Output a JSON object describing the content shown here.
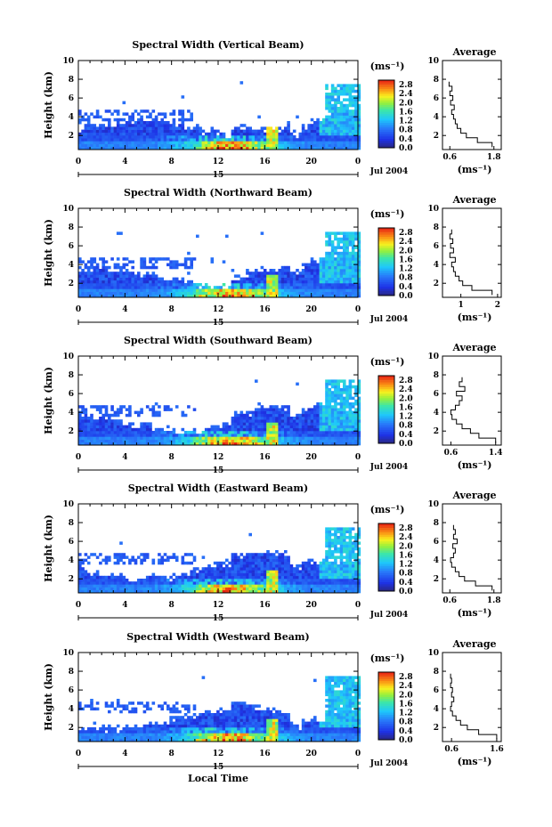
{
  "figure": {
    "xlabel_bottom": "Local Time",
    "date_label": "Jul 2004",
    "day_label": "15",
    "colorbar_unit": "(ms⁻¹)",
    "average_title": "Average",
    "average_xlabel": "(ms⁻¹)",
    "ylabel": "Height (km)"
  },
  "chart_data": [
    {
      "type": "heatmap",
      "title": "Spectral Width (Vertical Beam)",
      "x_ticks": [
        "0",
        "4",
        "8",
        "12",
        "16",
        "20",
        "0"
      ],
      "y_ticks": [
        "2",
        "4",
        "6",
        "8",
        "10"
      ],
      "xlim": [
        0,
        24
      ],
      "ylim": [
        0.5,
        10
      ],
      "colorbar_ticks": [
        "2.8",
        "2.4",
        "2.0",
        "1.6",
        "1.2",
        "0.8",
        "0.4",
        "0.0"
      ],
      "colorbar_range": [
        0,
        3.0
      ],
      "average": {
        "title": "Average",
        "x_ticks": [
          "0.6",
          "1.8"
        ],
        "xlim": [
          0.4,
          2.0
        ],
        "y_ticks": [
          "2",
          "4",
          "6",
          "8",
          "10"
        ],
        "height": [
          1.0,
          1.5,
          2.0,
          2.5,
          3.0,
          3.5,
          4.0,
          4.5,
          5.0,
          5.5,
          6.0,
          6.5,
          7.0,
          7.5
        ],
        "value": [
          1.75,
          1.35,
          1.05,
          0.9,
          0.8,
          0.75,
          0.7,
          0.65,
          0.72,
          0.62,
          0.68,
          0.6,
          0.66,
          0.58
        ]
      }
    },
    {
      "type": "heatmap",
      "title": "Spectral Width (Northward Beam)",
      "x_ticks": [
        "0",
        "4",
        "8",
        "12",
        "16",
        "20",
        "0"
      ],
      "y_ticks": [
        "2",
        "4",
        "6",
        "8",
        "10"
      ],
      "xlim": [
        0,
        24
      ],
      "ylim": [
        0.5,
        10
      ],
      "colorbar_ticks": [
        "2.8",
        "2.4",
        "2.0",
        "1.6",
        "1.2",
        "0.8",
        "0.4",
        "0.0"
      ],
      "colorbar_range": [
        0,
        3.0
      ],
      "average": {
        "title": "Average",
        "x_ticks": [
          "1",
          "2"
        ],
        "xlim": [
          0.5,
          2.1
        ],
        "y_ticks": [
          "2",
          "4",
          "6",
          "8",
          "10"
        ],
        "height": [
          1.0,
          1.5,
          2.0,
          2.5,
          3.0,
          3.5,
          4.0,
          4.5,
          5.0,
          5.5,
          6.0,
          6.5,
          7.0,
          7.5
        ],
        "value": [
          1.85,
          1.3,
          1.05,
          0.95,
          0.85,
          0.8,
          0.75,
          0.85,
          0.7,
          0.8,
          0.72,
          0.78,
          0.7,
          0.75
        ]
      }
    },
    {
      "type": "heatmap",
      "title": "Spectral Width (Southward Beam)",
      "x_ticks": [
        "0",
        "4",
        "8",
        "12",
        "16",
        "20",
        "0"
      ],
      "y_ticks": [
        "2",
        "4",
        "6",
        "8",
        "10"
      ],
      "xlim": [
        0,
        24
      ],
      "ylim": [
        0.5,
        10
      ],
      "colorbar_ticks": [
        "2.8",
        "2.4",
        "2.0",
        "1.6",
        "1.2",
        "0.8",
        "0.4",
        "0.0"
      ],
      "colorbar_range": [
        0,
        3.0
      ],
      "average": {
        "title": "Average",
        "x_ticks": [
          "0.6",
          "1.4"
        ],
        "xlim": [
          0.45,
          1.5
        ],
        "y_ticks": [
          "2",
          "4",
          "6",
          "8",
          "10"
        ],
        "height": [
          1.0,
          1.5,
          2.0,
          2.5,
          3.0,
          3.5,
          4.0,
          4.5,
          5.0,
          5.5,
          6.0,
          6.5,
          7.0,
          7.5
        ],
        "value": [
          1.4,
          1.1,
          0.95,
          0.8,
          0.7,
          0.62,
          0.6,
          0.68,
          0.75,
          0.8,
          0.7,
          0.85,
          0.75,
          0.8
        ]
      }
    },
    {
      "type": "heatmap",
      "title": "Spectral Width (Eastward Beam)",
      "x_ticks": [
        "0",
        "4",
        "8",
        "12",
        "16",
        "20",
        "0"
      ],
      "y_ticks": [
        "2",
        "4",
        "6",
        "8",
        "10"
      ],
      "xlim": [
        0,
        24
      ],
      "ylim": [
        0.5,
        10
      ],
      "colorbar_ticks": [
        "2.8",
        "2.4",
        "2.0",
        "1.6",
        "1.2",
        "0.8",
        "0.4",
        "0.0"
      ],
      "colorbar_range": [
        0,
        3.0
      ],
      "average": {
        "title": "Average",
        "x_ticks": [
          "0.6",
          "1.8"
        ],
        "xlim": [
          0.4,
          2.0
        ],
        "y_ticks": [
          "2",
          "4",
          "6",
          "8",
          "10"
        ],
        "height": [
          1.0,
          1.5,
          2.0,
          2.5,
          3.0,
          3.5,
          4.0,
          4.5,
          5.0,
          5.5,
          6.0,
          6.5,
          7.0,
          7.5
        ],
        "value": [
          1.75,
          1.3,
          1.0,
          0.85,
          0.75,
          0.65,
          0.62,
          0.7,
          0.75,
          0.68,
          0.8,
          0.7,
          0.75,
          0.7
        ]
      }
    },
    {
      "type": "heatmap",
      "title": "Spectral Width (Westward Beam)",
      "x_ticks": [
        "0",
        "4",
        "8",
        "12",
        "16",
        "20",
        "0"
      ],
      "y_ticks": [
        "2",
        "4",
        "6",
        "8",
        "10"
      ],
      "xlim": [
        0,
        24
      ],
      "ylim": [
        0.5,
        10
      ],
      "colorbar_ticks": [
        "2.8",
        "2.4",
        "2.0",
        "1.6",
        "1.2",
        "0.8",
        "0.4",
        "0.0"
      ],
      "colorbar_range": [
        0,
        3.0
      ],
      "average": {
        "title": "Average",
        "x_ticks": [
          "0.6",
          "1.6"
        ],
        "xlim": [
          0.4,
          1.7
        ],
        "y_ticks": [
          "2",
          "4",
          "6",
          "8",
          "10"
        ],
        "height": [
          1.0,
          1.5,
          2.0,
          2.5,
          3.0,
          3.5,
          4.0,
          4.5,
          5.0,
          5.5,
          6.0,
          6.5,
          7.0,
          7.5
        ],
        "value": [
          1.6,
          1.2,
          0.95,
          0.8,
          0.7,
          0.62,
          0.58,
          0.6,
          0.65,
          0.6,
          0.62,
          0.58,
          0.6,
          0.58
        ]
      }
    }
  ]
}
